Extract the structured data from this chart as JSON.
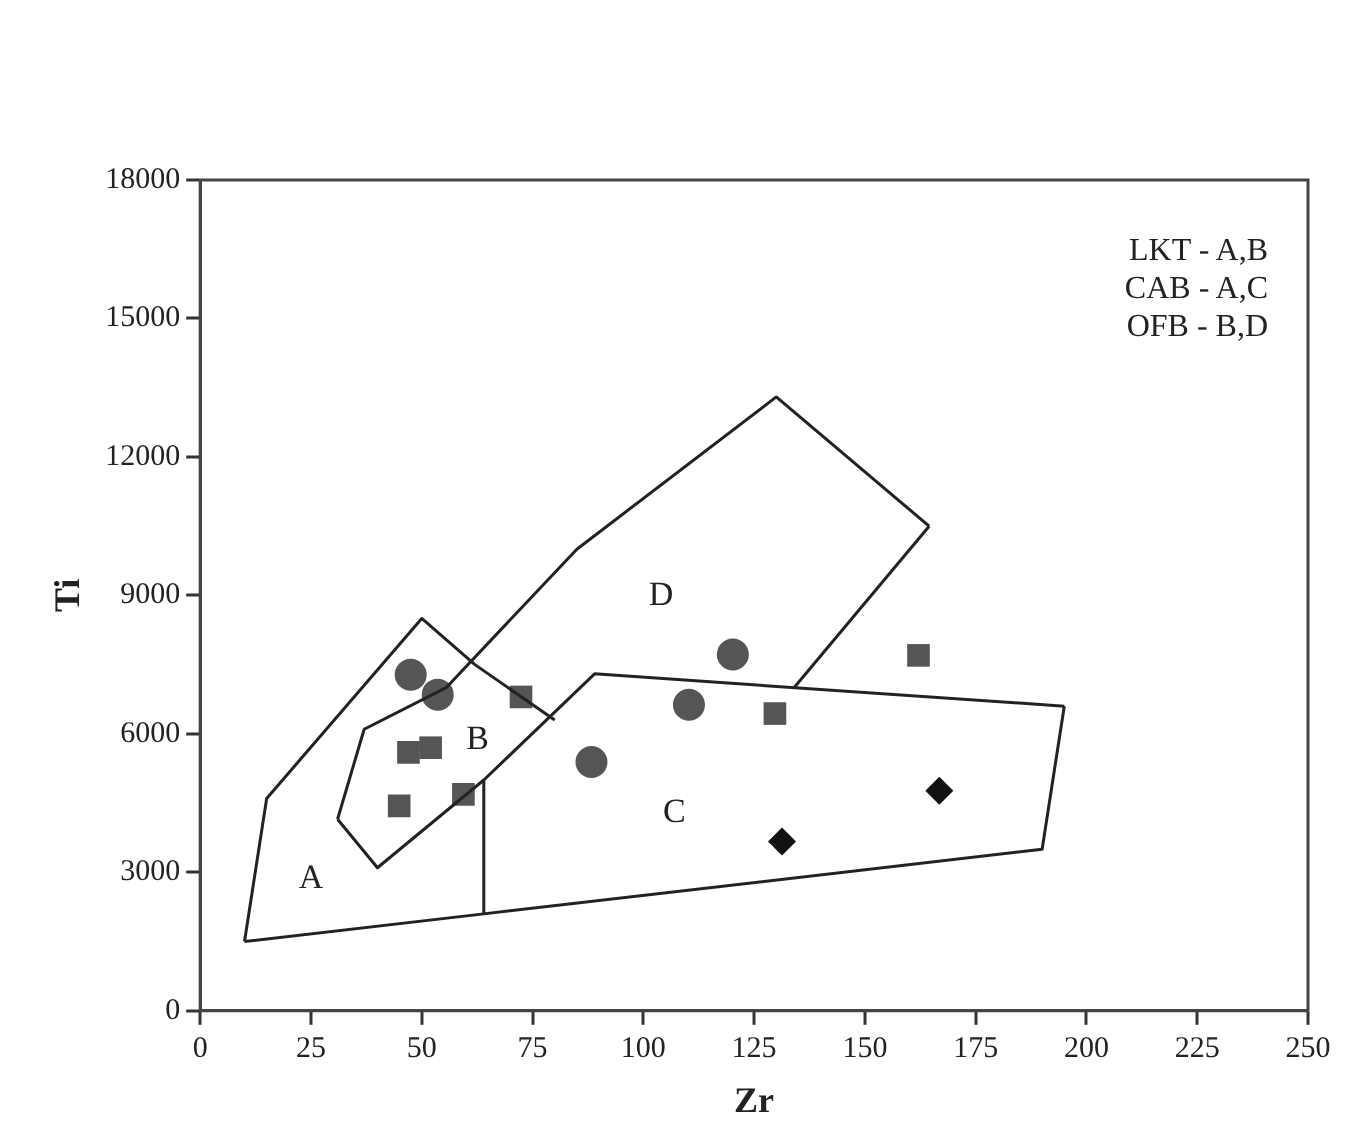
{
  "chart_data": {
    "type": "scatter",
    "xlabel": "Zr",
    "ylabel": "Ti",
    "xlim": [
      0,
      250
    ],
    "xticks": [
      0,
      25,
      50,
      75,
      100,
      125,
      150,
      175,
      200,
      225,
      250
    ],
    "ylim": [
      0,
      18000
    ],
    "yticks": [
      0,
      3000,
      6000,
      9000,
      12000,
      15000,
      18000
    ],
    "legend": false,
    "annotations": [
      "LKT - A,B",
      "CAB - A,C",
      "OFB - B,D",
      "A",
      "B",
      "C",
      "D"
    ],
    "series": [
      {
        "type": "line",
        "marker": "none",
        "color": "#222222",
        "x": [
          10,
          15,
          50,
          62,
          80
        ],
        "values": [
          1500,
          4600,
          8500,
          7500,
          6300
        ]
      },
      {
        "type": "line",
        "marker": "none",
        "color": "#222222",
        "x": [
          10,
          64,
          190,
          195
        ],
        "values": [
          1500,
          2100,
          3500,
          6600
        ]
      },
      {
        "type": "line",
        "marker": "none",
        "color": "#222222",
        "x": [
          64,
          64
        ],
        "values": [
          2100,
          5000
        ]
      },
      {
        "type": "line",
        "marker": "none",
        "color": "#222222",
        "x": [
          31,
          40,
          64,
          89,
          195
        ],
        "values": [
          4150,
          3100,
          5000,
          7300,
          6600
        ]
      },
      {
        "type": "line",
        "marker": "none",
        "color": "#222222",
        "x": [
          31,
          37,
          55.5,
          85,
          130,
          164.5
        ],
        "values": [
          4150,
          6100,
          7000,
          10000,
          13300,
          10500
        ]
      },
      {
        "type": "line",
        "marker": "none",
        "color": "#222222",
        "x": [
          134,
          164.5
        ],
        "values": [
          7000,
          10500
        ]
      },
      {
        "type": "scatter",
        "marker": "circle",
        "color": "#555555",
        "x": [
          47.5,
          53.6,
          120.2,
          110.3,
          88.3
        ],
        "values": [
          7280,
          6850,
          7720,
          6630,
          5390
        ]
      },
      {
        "type": "scatter",
        "marker": "square",
        "color": "#555555",
        "x": [
          72.4,
          47,
          52,
          44.9,
          59.4,
          129.7,
          162.1
        ],
        "values": [
          6800,
          5600,
          5700,
          4440,
          4690,
          6440,
          7700
        ]
      },
      {
        "type": "scatter",
        "marker": "diamond",
        "color": "#111111",
        "x": [
          131.3,
          166.8
        ],
        "values": [
          3670,
          4770
        ]
      }
    ]
  }
}
